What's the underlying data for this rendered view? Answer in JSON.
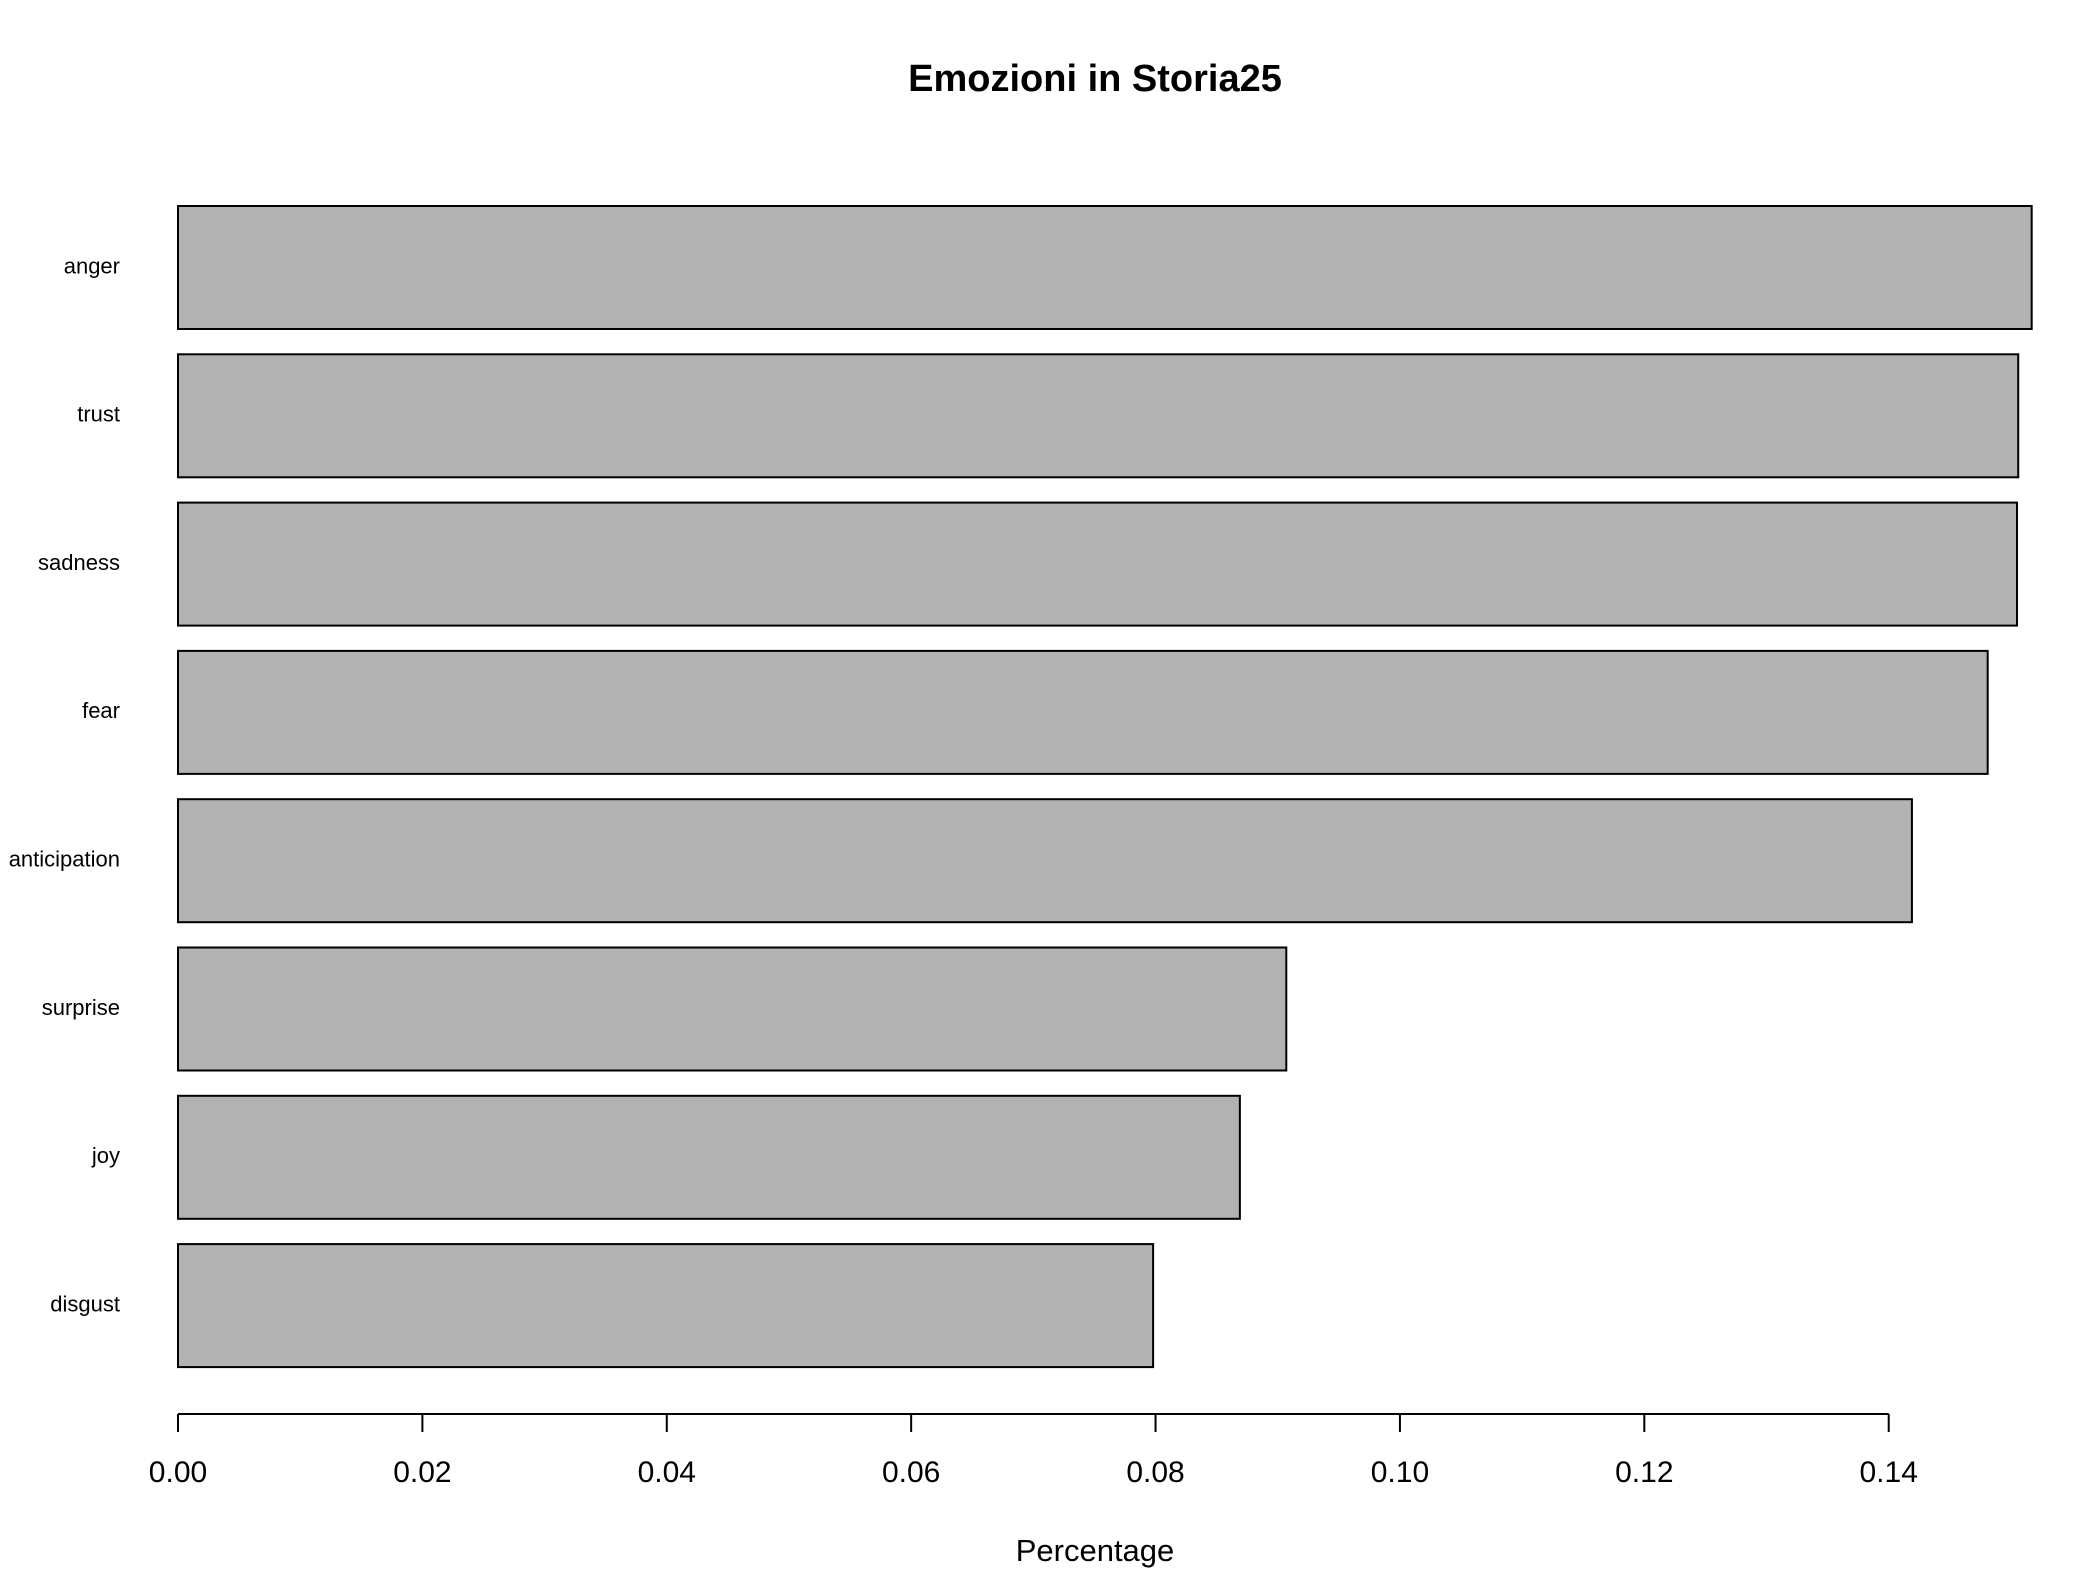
{
  "chart_data": {
    "type": "bar",
    "orientation": "horizontal",
    "title": "Emozioni in Storia25",
    "x_label": "Percentage",
    "categories": [
      "anger",
      "trust",
      "sadness",
      "fear",
      "anticipation",
      "surprise",
      "joy",
      "disgust"
    ],
    "values": [
      0.1517,
      0.1506,
      0.1505,
      0.1481,
      0.1419,
      0.0907,
      0.0869,
      0.0798
    ],
    "color": "#b2b2b2",
    "xlim": [
      0,
      0.155
    ],
    "xticks": [
      {
        "value": 0,
        "label": "0.00"
      },
      {
        "value": 0.02,
        "label": "0.02"
      },
      {
        "value": 0.04,
        "label": "0.04"
      },
      {
        "value": 0.06,
        "label": "0.06"
      },
      {
        "value": 0.08,
        "label": "0.08"
      },
      {
        "value": 0.1,
        "label": "0.10"
      },
      {
        "value": 0.12,
        "label": "0.12"
      },
      {
        "value": 0.14,
        "label": "0.14"
      }
    ],
    "grid": false
  }
}
